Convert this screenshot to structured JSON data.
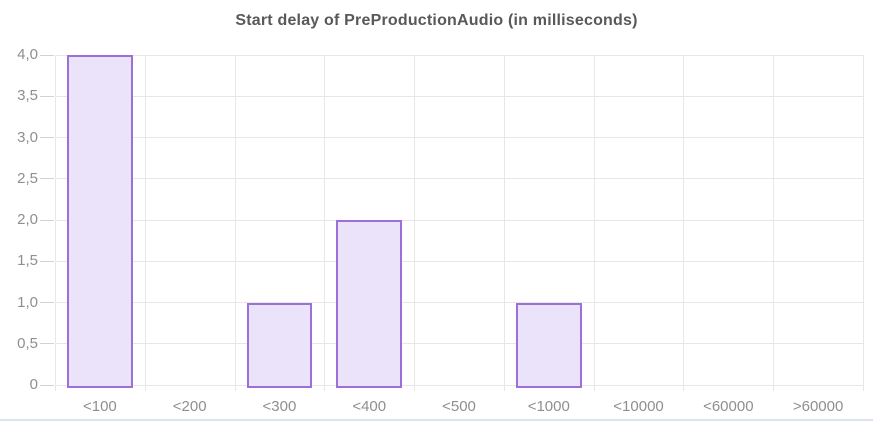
{
  "chart_data": {
    "type": "bar",
    "title": "Start delay of PreProductionAudio (in milliseconds)",
    "categories": [
      "<100",
      "<200",
      "<300",
      "<400",
      "<500",
      "<1000",
      "<10000",
      "<60000",
      ">60000"
    ],
    "values": [
      4,
      0,
      1,
      2,
      0,
      1,
      0,
      0,
      0
    ],
    "xlabel": "",
    "ylabel": "",
    "ylim": [
      0,
      4
    ],
    "ytick_step": 0.5,
    "ytick_labels_bottom_to_top": [
      "0",
      "0,5",
      "1,0",
      "1,5",
      "2,0",
      "2,5",
      "3,0",
      "3,5",
      "4,0"
    ],
    "grid": true,
    "legend": false
  },
  "colors": {
    "bar_fill": "#eae3f9",
    "bar_border": "#9d6fd8",
    "gridline": "#e7e7e7",
    "tick": "#d2d2d2",
    "axis_label": "#8f8f8f",
    "title": "#58595b",
    "bottom_line": "#dbe2f2"
  }
}
